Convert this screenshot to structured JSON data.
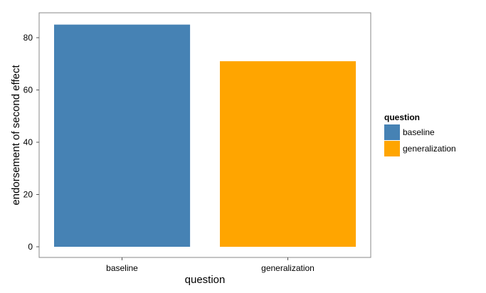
{
  "chart_data": {
    "type": "bar",
    "categories": [
      "baseline",
      "generalization"
    ],
    "values": [
      85,
      71
    ],
    "xlabel": "question",
    "ylabel": "endorsement of second effect",
    "ylim": [
      0,
      89
    ],
    "yticks": [
      0,
      20,
      40,
      60,
      80
    ],
    "grid": false,
    "colors": {
      "baseline": "#4682b4",
      "generalization": "#ffa500"
    },
    "legend": {
      "title": "question",
      "placement": "right",
      "entries": [
        "baseline",
        "generalization"
      ]
    }
  }
}
